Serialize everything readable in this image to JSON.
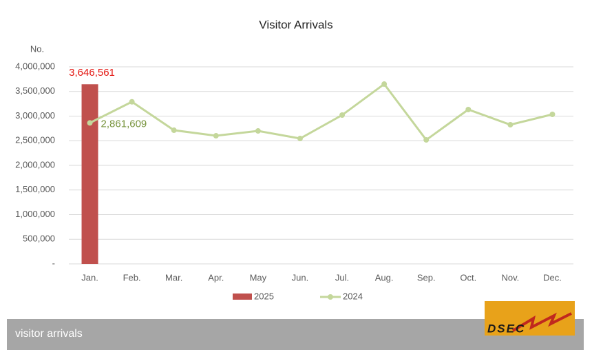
{
  "chart_data": {
    "type": "combo",
    "title": "Visitor Arrivals",
    "y_label": "No.",
    "categories": [
      "Jan.",
      "Feb.",
      "Mar.",
      "Apr.",
      "May",
      "Jun.",
      "Jul.",
      "Aug.",
      "Sep.",
      "Oct.",
      "Nov.",
      "Dec."
    ],
    "series": [
      {
        "name": "2025",
        "type": "bar",
        "color": "#c0504d",
        "label_color": "#e3140f",
        "values": [
          3646561,
          null,
          null,
          null,
          null,
          null,
          null,
          null,
          null,
          null,
          null,
          null
        ],
        "value_labels": [
          "3,646,561",
          null,
          null,
          null,
          null,
          null,
          null,
          null,
          null,
          null,
          null,
          null
        ]
      },
      {
        "name": "2024",
        "type": "line",
        "color": "#c4d79b",
        "label_color": "#77933c",
        "values": [
          2861609,
          3290000,
          2713000,
          2601000,
          2699000,
          2545000,
          3021000,
          3650000,
          2517000,
          3133000,
          2825000,
          3035000
        ],
        "value_labels": [
          "2,861,609",
          null,
          null,
          null,
          null,
          null,
          null,
          null,
          null,
          null,
          null,
          null
        ]
      }
    ],
    "ylim": [
      0,
      4000000
    ],
    "yticks": [
      {
        "value": 0,
        "label": "-"
      },
      {
        "value": 500000,
        "label": "500,000"
      },
      {
        "value": 1000000,
        "label": "1,000,000"
      },
      {
        "value": 1500000,
        "label": "1,500,000"
      },
      {
        "value": 2000000,
        "label": "2,000,000"
      },
      {
        "value": 2500000,
        "label": "2,500,000"
      },
      {
        "value": 3000000,
        "label": "3,000,000"
      },
      {
        "value": 3500000,
        "label": "3,500,000"
      },
      {
        "value": 4000000,
        "label": "4,000,000"
      }
    ],
    "grid": true,
    "legend": "bottom"
  },
  "footer": {
    "caption": "visitor arrivals",
    "logo": "DSEC"
  }
}
